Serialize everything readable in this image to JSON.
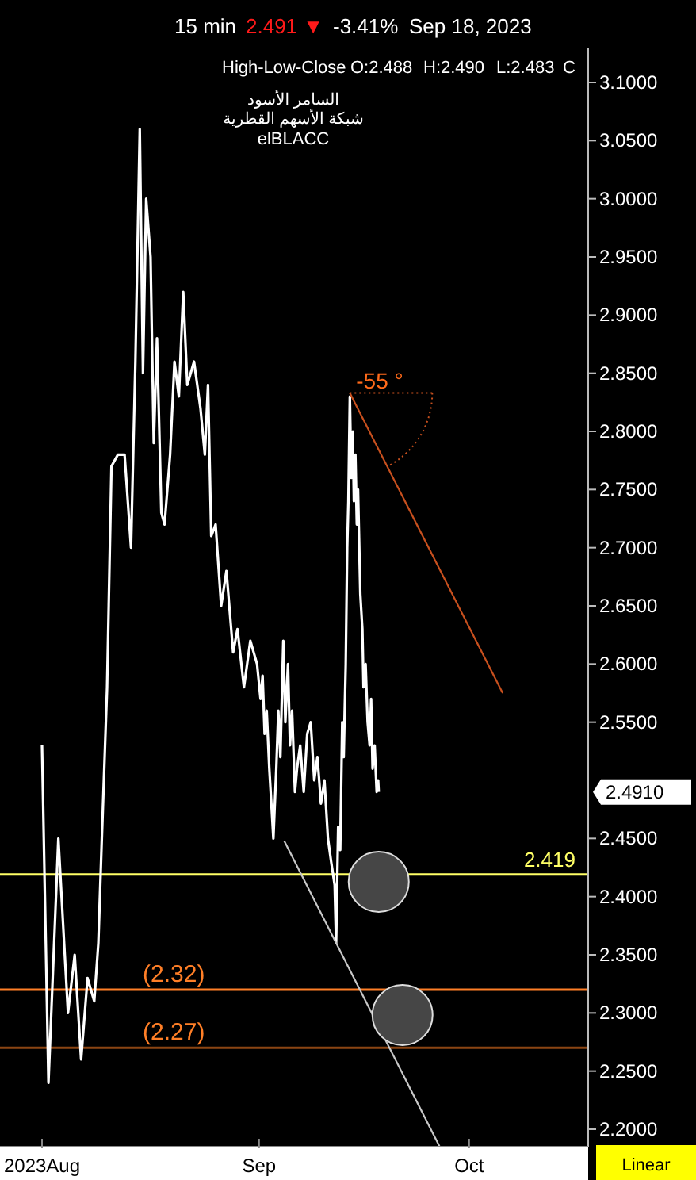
{
  "chart_data": {
    "type": "line",
    "title": "السامر الأسود",
    "subtitle": "شبكة الأسهم القطرية",
    "annotations": [
      "15 min",
      "2.491 ▼",
      "-3.41%",
      "Sep 18, 2023",
      "High-Low-Close",
      "O:2.488",
      "H:2.490",
      "L:2.483",
      "C",
      "elBLACC",
      "2.4910",
      "Linear",
      {
        "text": "-55 °",
        "x": "2023-09-13T23:00",
        "y": 2.833
      }
    ],
    "series": [
      {
        "color": "#ffffff",
        "x": [
          "2023-08-01T00:00",
          "2023-08-01T22:00",
          "2023-08-03T08:00",
          "2023-08-04T17:00",
          "2023-08-05T16:00",
          "2023-08-06T14:00",
          "2023-08-07T12:00",
          "2023-08-08T11:00",
          "2023-08-09T01:00",
          "2023-08-09T13:00",
          "2023-08-10T07:00",
          "2023-08-10T22:00",
          "2023-08-11T20:00",
          "2023-08-12T19:00",
          "2023-08-13T17:00",
          "2023-08-14T08:00",
          "2023-08-14T23:00",
          "2023-08-15T10:00",
          "2023-08-15T21:00",
          "2023-08-16T12:00",
          "2023-08-16T23:00",
          "2023-08-17T10:00",
          "2023-08-18T01:00",
          "2023-08-18T12:00",
          "2023-08-19T07:00",
          "2023-08-19T22:00",
          "2023-08-20T13:00",
          "2023-08-21T04:00",
          "2023-08-21T18:00",
          "2023-08-22T17:00",
          "2023-08-23T15:00",
          "2023-08-24T06:00",
          "2023-08-24T17:00",
          "2023-08-25T04:00",
          "2023-08-25T19:00",
          "2023-08-26T14:00",
          "2023-08-27T08:00",
          "2023-08-28T07:00",
          "2023-08-28T22:00",
          "2023-08-29T20:00",
          "2023-08-30T18:00",
          "2023-08-31T17:00",
          "2023-09-01T05:00",
          "2023-09-01T12:00",
          "2023-09-01T19:00",
          "2023-09-02T02:00",
          "2023-09-02T11:00",
          "2023-09-02T18:00",
          "2023-09-03T01:00",
          "2023-09-03T11:00",
          "2023-09-03T18:00",
          "2023-09-04T01:00",
          "2023-09-04T11:00",
          "2023-09-04T18:00",
          "2023-09-05T03:00",
          "2023-09-05T10:00",
          "2023-09-05T17:00",
          "2023-09-06T03:00",
          "2023-09-06T10:00",
          "2023-09-06T21:00",
          "2023-09-07T09:00",
          "2023-09-07T21:00",
          "2023-09-08T09:00",
          "2023-09-08T21:00",
          "2023-09-09T08:00",
          "2023-09-09T20:00",
          "2023-09-10T08:00",
          "2023-09-10T20:00",
          "2023-09-11T07:00",
          "2023-09-11T19:00",
          "2023-09-12T00:00",
          "2023-09-12T07:00",
          "2023-09-12T14:00",
          "2023-09-12T21:00",
          "2023-09-13T02:00",
          "2023-09-13T09:00",
          "2023-09-13T14:00",
          "2023-09-13T18:00",
          "2023-09-13T23:00",
          "2023-09-14T04:00",
          "2023-09-14T09:00",
          "2023-09-14T13:00",
          "2023-09-14T18:00",
          "2023-09-14T23:00",
          "2023-09-15T03:00",
          "2023-09-15T11:00",
          "2023-09-15T18:00",
          "2023-09-15T22:00",
          "2023-09-16T05:00",
          "2023-09-16T12:00",
          "2023-09-16T19:00",
          "2023-09-17T00:00",
          "2023-09-17T05:00",
          "2023-09-17T12:00",
          "2023-09-17T19:00",
          "2023-09-18T00:00",
          "2023-09-18T02:00"
        ],
        "values": [
          2.53,
          2.24,
          2.45,
          2.3,
          2.35,
          2.26,
          2.33,
          2.31,
          2.36,
          2.45,
          2.58,
          2.77,
          2.78,
          2.78,
          2.7,
          2.86,
          3.06,
          2.85,
          3.0,
          2.95,
          2.79,
          2.88,
          2.73,
          2.72,
          2.78,
          2.86,
          2.83,
          2.92,
          2.84,
          2.86,
          2.82,
          2.78,
          2.84,
          2.71,
          2.72,
          2.65,
          2.68,
          2.61,
          2.63,
          2.58,
          2.62,
          2.6,
          2.57,
          2.59,
          2.54,
          2.56,
          2.51,
          2.48,
          2.45,
          2.51,
          2.56,
          2.52,
          2.62,
          2.55,
          2.6,
          2.53,
          2.56,
          2.49,
          2.51,
          2.53,
          2.49,
          2.54,
          2.55,
          2.5,
          2.52,
          2.48,
          2.5,
          2.45,
          2.43,
          2.41,
          2.36,
          2.46,
          2.44,
          2.55,
          2.52,
          2.6,
          2.7,
          2.74,
          2.83,
          2.76,
          2.8,
          2.74,
          2.78,
          2.72,
          2.75,
          2.66,
          2.63,
          2.58,
          2.6,
          2.55,
          2.53,
          2.57,
          2.51,
          2.53,
          2.49,
          2.5,
          2.49
        ]
      },
      {
        "color": "#c8c8c8",
        "x": [
          "2023-09-04T14:00",
          "2023-09-26T19:00"
        ],
        "values": [
          2.448,
          2.185
        ]
      },
      {
        "color": "#c8501e",
        "x": [
          "2023-09-13T23:00",
          "2023-10-05T19:00"
        ],
        "values": [
          2.833,
          2.575
        ]
      }
    ],
    "ref_lines": [
      {
        "axis": "y",
        "value": 2.419,
        "label": "2.419",
        "color": "#ffff66"
      },
      {
        "axis": "y",
        "value": 2.32,
        "label": "(2.32)",
        "color": "#ff7f27"
      },
      {
        "axis": "y",
        "value": 2.27,
        "label": "(2.27)",
        "color": "#8b4513"
      }
    ],
    "xlim": [
      "2023-07-26",
      "2023-10-18"
    ],
    "xticks": [
      {
        "value": "2023-08",
        "label": "2023Aug"
      },
      {
        "value": "2023-09",
        "label": "Sep"
      },
      {
        "value": "2023-10",
        "label": "Oct"
      }
    ],
    "ylim": [
      2.185,
      3.13
    ],
    "yticks": [
      {
        "value": 2.2,
        "label": "2.2000"
      },
      {
        "value": 2.25,
        "label": "2.2500"
      },
      {
        "value": 2.3,
        "label": "2.3000"
      },
      {
        "value": 2.35,
        "label": "2.3500"
      },
      {
        "value": 2.4,
        "label": "2.4000"
      },
      {
        "value": 2.45,
        "label": "2.4500"
      },
      {
        "value": 2.55,
        "label": "2.5500"
      },
      {
        "value": 2.6,
        "label": "2.6000"
      },
      {
        "value": 2.65,
        "label": "2.6500"
      },
      {
        "value": 2.7,
        "label": "2.7000"
      },
      {
        "value": 2.75,
        "label": "2.7500"
      },
      {
        "value": 2.8,
        "label": "2.8000"
      },
      {
        "value": 2.85,
        "label": "2.8500"
      },
      {
        "value": 2.9,
        "label": "2.9000"
      },
      {
        "value": 2.95,
        "label": "2.9500"
      },
      {
        "value": 3.0,
        "label": "3.0000"
      },
      {
        "value": 3.05,
        "label": "3.0500"
      },
      {
        "value": 3.1,
        "label": "3.1000"
      }
    ],
    "grid": false,
    "marker": "none",
    "line_style": "solid"
  }
}
